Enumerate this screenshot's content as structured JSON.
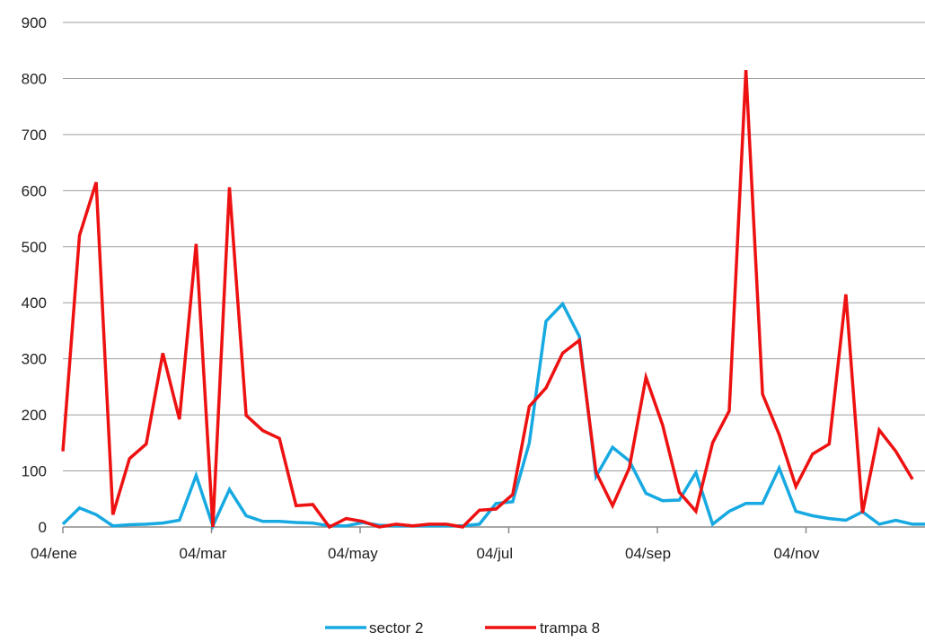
{
  "chart_data": {
    "type": "line",
    "title": "",
    "xlabel": "",
    "ylabel": "",
    "x_tick_labels": [
      "04/ene",
      "04/mar",
      "04/may",
      "04/jul",
      "04/sep",
      "04/nov"
    ],
    "ylim": [
      0,
      900
    ],
    "y_ticks": [
      0,
      100,
      200,
      300,
      400,
      500,
      600,
      700,
      800,
      900
    ],
    "grid": "horizontal",
    "legend_position": "bottom",
    "series": [
      {
        "name": "sector 2",
        "color": "#17a9e1",
        "values": [
          5,
          34,
          22,
          2,
          4,
          5,
          7,
          12,
          92,
          2,
          67,
          20,
          10,
          10,
          8,
          7,
          2,
          2,
          8,
          3,
          2,
          2,
          2,
          2,
          2,
          5,
          42,
          45,
          150,
          367,
          398,
          340,
          90,
          142,
          118,
          60,
          47,
          48,
          97,
          5,
          28,
          42,
          42,
          105,
          28,
          20,
          15,
          12,
          27,
          5,
          12,
          5,
          5
        ]
      },
      {
        "name": "trampa 8",
        "color": "#ee1111",
        "values": [
          135,
          520,
          615,
          22,
          122,
          148,
          310,
          192,
          505,
          0,
          606,
          199,
          172,
          158,
          38,
          40,
          0,
          15,
          10,
          0,
          5,
          2,
          5,
          5,
          0,
          30,
          32,
          58,
          215,
          248,
          310,
          333,
          98,
          38,
          105,
          267,
          182,
          62,
          28,
          150,
          207,
          815,
          237,
          165,
          72,
          130,
          148,
          415,
          25,
          173,
          135,
          85
        ]
      }
    ]
  }
}
